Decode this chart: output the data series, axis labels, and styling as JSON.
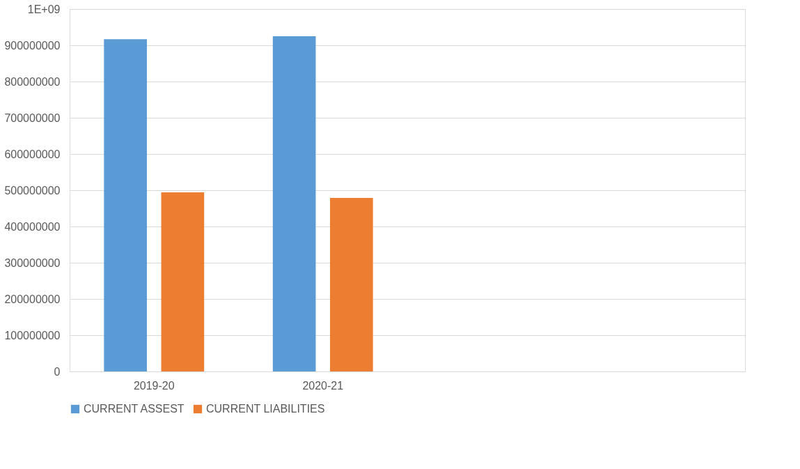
{
  "chart_data": {
    "type": "bar",
    "categories": [
      "2019-20",
      "2020-21",
      null,
      null
    ],
    "series": [
      {
        "name": "CURRENT ASSEST",
        "color": "#5b9bd5",
        "values": [
          917000000,
          925000000,
          null,
          null
        ]
      },
      {
        "name": "CURRENT LIABILITIES",
        "color": "#ed7d31",
        "values": [
          494000000,
          479000000,
          null,
          null
        ]
      }
    ],
    "ylim": [
      0,
      1000000000
    ],
    "yticks": [
      0,
      100000000,
      200000000,
      300000000,
      400000000,
      500000000,
      600000000,
      700000000,
      800000000,
      {
        "value": 900000000,
        "label": "900000000"
      },
      {
        "value": 1000000000,
        "label": "1E+09"
      }
    ],
    "grid": "y",
    "legend": "bottom"
  }
}
